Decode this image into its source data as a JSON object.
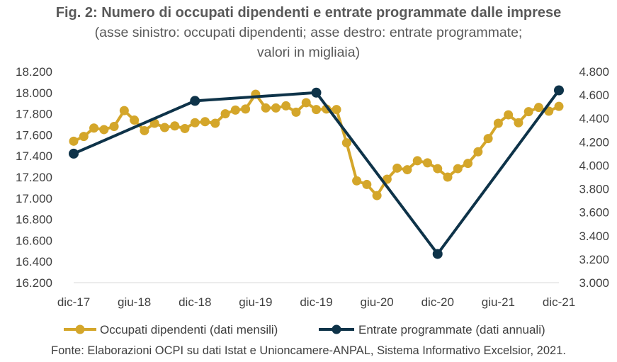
{
  "chart_data": {
    "type": "line",
    "title": "Fig. 2: Numero di occupati dipendenti e entrate programmate dalle imprese",
    "subtitle_lines": [
      "(asse sinistro: occupati dipendenti; asse destro: entrate programmate;",
      "valori in migliaia)"
    ],
    "x_tick_labels": [
      "dic-17",
      "giu-18",
      "dic-18",
      "giu-19",
      "dic-19",
      "giu-20",
      "dic-20",
      "giu-21",
      "dic-21"
    ],
    "x_tick_month_index": [
      0,
      6,
      12,
      18,
      24,
      30,
      36,
      42,
      48
    ],
    "y_left": {
      "min": 16200,
      "max": 18200,
      "step": 200,
      "tick_labels": [
        "16.200",
        "16.400",
        "16.600",
        "16.800",
        "17.000",
        "17.200",
        "17.400",
        "17.600",
        "17.800",
        "18.000",
        "18.200"
      ]
    },
    "y_right": {
      "min": 3000,
      "max": 4800,
      "step": 200,
      "tick_labels": [
        "3.000",
        "3.200",
        "3.400",
        "3.600",
        "3.800",
        "4.000",
        "4.200",
        "4.400",
        "4.600",
        "4.800"
      ]
    },
    "series": [
      {
        "name": "Occupati dipendenti (dati mensili)",
        "axis": "left",
        "color": "#D4A62A",
        "marker": "circle",
        "month_index": [
          0,
          1,
          2,
          3,
          4,
          5,
          6,
          7,
          8,
          9,
          10,
          11,
          12,
          13,
          14,
          15,
          16,
          17,
          18,
          19,
          20,
          21,
          22,
          23,
          24,
          25,
          26,
          27,
          28,
          29,
          30,
          31,
          32,
          33,
          34,
          35,
          36,
          37,
          38,
          39,
          40,
          41,
          42,
          43,
          44,
          45,
          46,
          47,
          48
        ],
        "values": [
          17540,
          17585,
          17665,
          17650,
          17680,
          17830,
          17740,
          17640,
          17710,
          17670,
          17685,
          17660,
          17715,
          17725,
          17710,
          17800,
          17835,
          17845,
          17985,
          17855,
          17855,
          17875,
          17815,
          17905,
          17840,
          17845,
          17840,
          17525,
          17165,
          17130,
          17025,
          17180,
          17285,
          17270,
          17355,
          17335,
          17280,
          17200,
          17280,
          17330,
          17440,
          17565,
          17710,
          17790,
          17715,
          17820,
          17860,
          17825,
          17870
        ]
      },
      {
        "name": "Entrate programmate (dati annuali)",
        "axis": "right",
        "color": "#0E3349",
        "marker": "circle",
        "month_index": [
          0,
          12,
          24,
          36,
          48
        ],
        "values": [
          4100,
          4550,
          4620,
          3245,
          4640
        ]
      }
    ],
    "grid": false,
    "legend_position": "bottom"
  },
  "source_text": "Fonte: Elaborazioni OCPI su dati Istat e Unioncamere-ANPAL, Sistema Informativo Excelsior, 2021."
}
